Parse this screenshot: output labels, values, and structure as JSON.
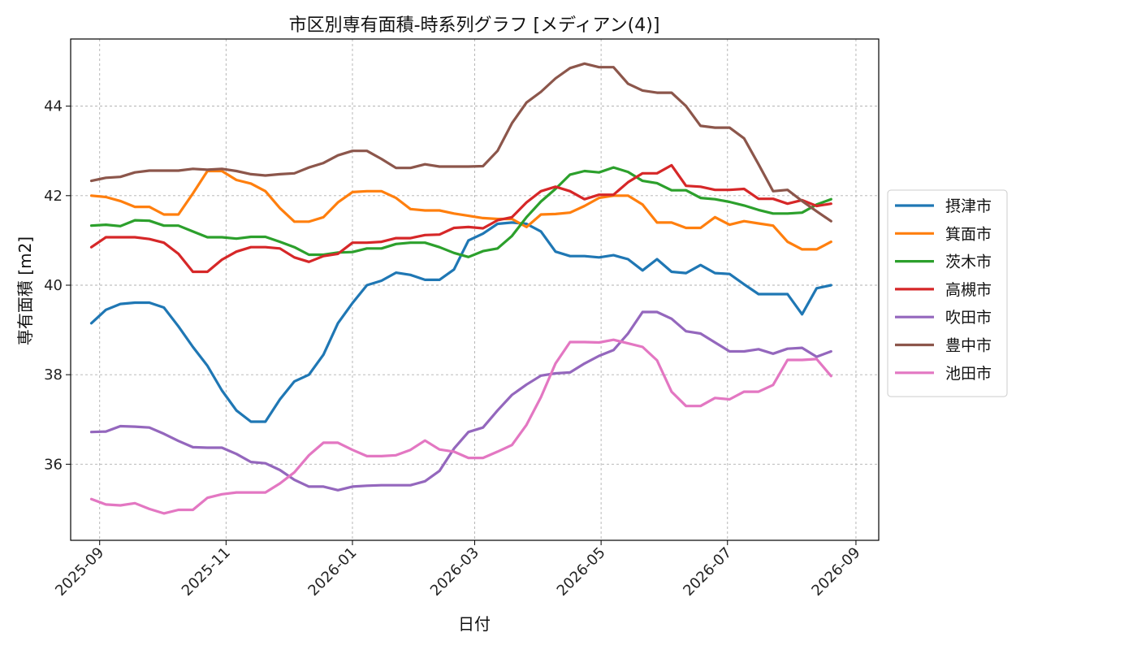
{
  "chart_data": {
    "type": "line",
    "title": "市区別専有面積-時系列グラフ [メディアン(4)]",
    "xlabel": "日付",
    "ylabel": "専有面積 [m2]",
    "x_ticks": [
      "2025-09",
      "2025-11",
      "2026-01",
      "2026-03",
      "2026-05",
      "2026-07",
      "2026-09"
    ],
    "y_ticks": [
      36,
      38,
      40,
      42,
      44
    ],
    "xlim": [
      "2025-08-18",
      "2026-09-12"
    ],
    "ylim": [
      34.3,
      45.5
    ],
    "grid": true,
    "legend_position": "center-right outside",
    "x": [
      "2025-08-28",
      "2025-09-04",
      "2025-09-11",
      "2025-09-18",
      "2025-09-25",
      "2025-10-02",
      "2025-10-09",
      "2025-10-16",
      "2025-10-23",
      "2025-10-30",
      "2025-11-06",
      "2025-11-13",
      "2025-11-20",
      "2025-11-27",
      "2025-12-04",
      "2025-12-11",
      "2025-12-18",
      "2025-12-25",
      "2026-01-01",
      "2026-01-08",
      "2026-01-15",
      "2026-01-22",
      "2026-01-29",
      "2026-02-05",
      "2026-02-12",
      "2026-02-19",
      "2026-02-26",
      "2026-03-05",
      "2026-03-12",
      "2026-03-19",
      "2026-03-26",
      "2026-04-02",
      "2026-04-09",
      "2026-04-16",
      "2026-04-23",
      "2026-04-30",
      "2026-05-07",
      "2026-05-14",
      "2026-05-21",
      "2026-05-28",
      "2026-06-04",
      "2026-06-11",
      "2026-06-18",
      "2026-06-25",
      "2026-07-02",
      "2026-07-09",
      "2026-07-16",
      "2026-07-23",
      "2026-07-30",
      "2026-08-06",
      "2026-08-13",
      "2026-08-20"
    ],
    "series": [
      {
        "name": "摂津市",
        "color": "#1f77b4",
        "values": [
          39.15,
          39.45,
          39.58,
          39.61,
          39.61,
          39.5,
          39.08,
          38.62,
          38.2,
          37.65,
          37.2,
          36.95,
          36.95,
          37.45,
          37.85,
          38.0,
          38.45,
          39.15,
          39.6,
          40.0,
          40.1,
          40.28,
          40.23,
          40.12,
          40.12,
          40.35,
          41.0,
          41.15,
          41.37,
          41.4,
          41.37,
          41.2,
          40.75,
          40.65,
          40.65,
          40.62,
          40.67,
          40.58,
          40.33,
          40.58,
          40.3,
          40.27,
          40.45,
          40.27,
          40.25,
          40.02,
          39.8,
          39.8,
          39.8,
          39.35,
          39.93,
          40.0
        ]
      },
      {
        "name": "箕面市",
        "color": "#ff7f0e",
        "values": [
          42.0,
          41.97,
          41.88,
          41.75,
          41.75,
          41.58,
          41.58,
          42.05,
          42.55,
          42.55,
          42.35,
          42.27,
          42.1,
          41.72,
          41.42,
          41.42,
          41.52,
          41.85,
          42.08,
          42.1,
          42.1,
          41.95,
          41.7,
          41.67,
          41.67,
          41.6,
          41.55,
          41.5,
          41.48,
          41.48,
          41.3,
          41.58,
          41.59,
          41.62,
          41.77,
          41.95,
          42.0,
          42.0,
          41.8,
          41.4,
          41.4,
          41.28,
          41.28,
          41.52,
          41.35,
          41.43,
          41.38,
          41.33,
          40.97,
          40.8,
          40.8,
          40.97
        ]
      },
      {
        "name": "茨木市",
        "color": "#2ca02c",
        "values": [
          41.33,
          41.35,
          41.32,
          41.45,
          41.44,
          41.33,
          41.33,
          41.2,
          41.07,
          41.07,
          41.04,
          41.08,
          41.08,
          40.97,
          40.85,
          40.68,
          40.68,
          40.73,
          40.74,
          40.82,
          40.82,
          40.92,
          40.95,
          40.95,
          40.85,
          40.72,
          40.63,
          40.76,
          40.82,
          41.1,
          41.52,
          41.87,
          42.15,
          42.47,
          42.55,
          42.52,
          42.63,
          42.53,
          42.33,
          42.28,
          42.12,
          42.12,
          41.95,
          41.92,
          41.86,
          41.78,
          41.68,
          41.6,
          41.6,
          41.62,
          41.8,
          41.92
        ]
      },
      {
        "name": "高槻市",
        "color": "#d62728",
        "values": [
          40.85,
          41.07,
          41.07,
          41.07,
          41.03,
          40.95,
          40.7,
          40.3,
          40.3,
          40.57,
          40.75,
          40.85,
          40.85,
          40.82,
          40.62,
          40.52,
          40.65,
          40.7,
          40.95,
          40.95,
          40.97,
          41.05,
          41.05,
          41.12,
          41.13,
          41.28,
          41.3,
          41.27,
          41.45,
          41.52,
          41.85,
          42.1,
          42.2,
          42.1,
          41.92,
          42.02,
          42.02,
          42.3,
          42.5,
          42.5,
          42.68,
          42.22,
          42.2,
          42.13,
          42.13,
          42.15,
          41.93,
          41.93,
          41.82,
          41.9,
          41.77,
          41.82
        ]
      },
      {
        "name": "吹田市",
        "color": "#9467bd",
        "values": [
          36.72,
          36.73,
          36.85,
          36.84,
          36.82,
          36.68,
          36.52,
          36.38,
          36.37,
          36.37,
          36.23,
          36.05,
          36.02,
          35.87,
          35.65,
          35.5,
          35.5,
          35.42,
          35.5,
          35.52,
          35.53,
          35.53,
          35.53,
          35.62,
          35.85,
          36.35,
          36.72,
          36.82,
          37.2,
          37.55,
          37.78,
          37.98,
          38.03,
          38.05,
          38.25,
          38.42,
          38.55,
          38.92,
          39.4,
          39.4,
          39.25,
          38.97,
          38.92,
          38.72,
          38.52,
          38.52,
          38.57,
          38.47,
          38.58,
          38.6,
          38.4,
          38.52
        ]
      },
      {
        "name": "豊中市",
        "color": "#8c564b",
        "values": [
          42.33,
          42.4,
          42.42,
          42.52,
          42.56,
          42.56,
          42.56,
          42.6,
          42.58,
          42.6,
          42.55,
          42.48,
          42.45,
          42.48,
          42.5,
          42.63,
          42.73,
          42.9,
          43.0,
          43.0,
          42.82,
          42.62,
          42.62,
          42.7,
          42.65,
          42.65,
          42.65,
          42.66,
          43.0,
          43.62,
          44.08,
          44.32,
          44.62,
          44.85,
          44.95,
          44.87,
          44.87,
          44.5,
          44.35,
          44.3,
          44.3,
          44.0,
          43.56,
          43.52,
          43.52,
          43.28,
          42.7,
          42.1,
          42.13,
          41.88,
          41.65,
          41.43
        ]
      },
      {
        "name": "池田市",
        "color": "#e377c2",
        "values": [
          35.22,
          35.1,
          35.08,
          35.13,
          35.0,
          34.9,
          34.98,
          34.98,
          35.25,
          35.33,
          35.37,
          35.37,
          35.37,
          35.57,
          35.82,
          36.2,
          36.48,
          36.48,
          36.32,
          36.18,
          36.18,
          36.2,
          36.32,
          36.53,
          36.33,
          36.28,
          36.14,
          36.14,
          36.28,
          36.43,
          36.88,
          37.5,
          38.25,
          38.73,
          38.73,
          38.72,
          38.78,
          38.7,
          38.62,
          38.32,
          37.62,
          37.3,
          37.3,
          37.48,
          37.45,
          37.62,
          37.62,
          37.77,
          38.33,
          38.33,
          38.35,
          37.97
        ]
      }
    ]
  }
}
